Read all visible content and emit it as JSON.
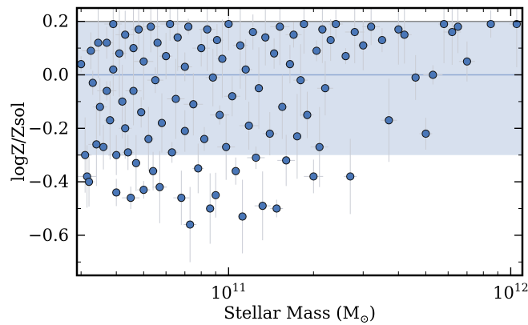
{
  "chart_data": {
    "type": "scatter",
    "xlabel": "Stellar Mass (M",
    "xlabel_symbol": "⊙",
    "xlabel_close": ")",
    "ylabel": "logZ/Zsol",
    "x_scale": "log",
    "xlim": [
      29000000000,
      1100000000000
    ],
    "ylim": [
      -0.75,
      0.25
    ],
    "x_ticks": [
      {
        "base": "10",
        "exp": "11",
        "value": 100000000000
      },
      {
        "base": "10",
        "exp": "12",
        "value": 1000000000000
      }
    ],
    "y_ticks": [
      {
        "label": "0.2",
        "value": 0.2
      },
      {
        "label": "0.0",
        "value": 0.0
      },
      {
        "label": "−0.2",
        "value": -0.2
      },
      {
        "label": "−0.4",
        "value": -0.4
      },
      {
        "label": "−0.6",
        "value": -0.6
      }
    ],
    "band": {
      "y_low": -0.3,
      "y_high": 0.2,
      "color": "#d7e0ee"
    },
    "reference_lines": [
      {
        "y": 0.2,
        "color": "#8a8a8a"
      },
      {
        "y": 0.0,
        "color": "#8fa8d2"
      }
    ],
    "grid": false,
    "legend": "none",
    "marker_color": "#4a77b8",
    "marker_edge": "#111111",
    "errorbar_color": "#c9ccd4",
    "points": [
      [
        30000000000.0,
        0.04
      ],
      [
        31000000000.0,
        -0.3
      ],
      [
        31500000000.0,
        -0.38
      ],
      [
        32000000000.0,
        -0.4
      ],
      [
        32500000000.0,
        0.09
      ],
      [
        33000000000.0,
        -0.03
      ],
      [
        34000000000.0,
        -0.26
      ],
      [
        34500000000.0,
        0.12
      ],
      [
        35000000000.0,
        -0.12
      ],
      [
        36000000000.0,
        -0.27
      ],
      [
        37000000000.0,
        0.12
      ],
      [
        37000000000.0,
        -0.06
      ],
      [
        38000000000.0,
        -0.17
      ],
      [
        39000000000.0,
        0.19
      ],
      [
        39000000000.0,
        0.02
      ],
      [
        40000000000.0,
        -0.3
      ],
      [
        40000000000.0,
        -0.44
      ],
      [
        41000000000.0,
        0.08
      ],
      [
        42000000000.0,
        -0.1
      ],
      [
        43000000000.0,
        -0.2
      ],
      [
        43000000000.0,
        0.15
      ],
      [
        44000000000.0,
        -0.29
      ],
      [
        45000000000.0,
        -0.46
      ],
      [
        46000000000.0,
        0.1
      ],
      [
        46000000000.0,
        -0.06
      ],
      [
        47000000000.0,
        -0.33
      ],
      [
        48000000000.0,
        0.17
      ],
      [
        49000000000.0,
        -0.14
      ],
      [
        50000000000.0,
        -0.43
      ],
      [
        50000000000.0,
        0.05
      ],
      [
        52000000000.0,
        -0.24
      ],
      [
        53000000000.0,
        0.18
      ],
      [
        54000000000.0,
        -0.36
      ],
      [
        55000000000.0,
        -0.02
      ],
      [
        56000000000.0,
        0.12
      ],
      [
        57000000000.0,
        -0.42
      ],
      [
        58000000000.0,
        -0.18
      ],
      [
        60000000000.0,
        0.07
      ],
      [
        62000000000.0,
        0.19
      ],
      [
        63000000000.0,
        -0.29
      ],
      [
        65000000000.0,
        -0.09
      ],
      [
        66000000000.0,
        0.14
      ],
      [
        68000000000.0,
        -0.46
      ],
      [
        70000000000.0,
        -0.21
      ],
      [
        70000000000.0,
        0.03
      ],
      [
        72000000000.0,
        0.18
      ],
      [
        73000000000.0,
        -0.56
      ],
      [
        75000000000.0,
        -0.11
      ],
      [
        78000000000.0,
        -0.35
      ],
      [
        80000000000.0,
        0.1
      ],
      [
        82000000000.0,
        -0.24
      ],
      [
        84000000000.0,
        0.17
      ],
      [
        86000000000.0,
        -0.5
      ],
      [
        88000000000.0,
        -0.01
      ],
      [
        90000000000.0,
        -0.45
      ],
      [
        91000000000.0,
        0.13
      ],
      [
        93000000000.0,
        -0.15
      ],
      [
        95000000000.0,
        0.06
      ],
      [
        98000000000.0,
        -0.27
      ],
      [
        100000000000.0,
        0.19
      ],
      [
        103000000000.0,
        -0.08
      ],
      [
        106000000000.0,
        -0.36
      ],
      [
        110000000000.0,
        0.11
      ],
      [
        112000000000.0,
        -0.53
      ],
      [
        115000000000.0,
        0.02
      ],
      [
        118000000000.0,
        -0.19
      ],
      [
        122000000000.0,
        0.16
      ],
      [
        125000000000.0,
        -0.31
      ],
      [
        128000000000.0,
        -0.05
      ],
      [
        132000000000.0,
        -0.49
      ],
      [
        135000000000.0,
        0.14
      ],
      [
        140000000000.0,
        -0.22
      ],
      [
        145000000000.0,
        0.08
      ],
      [
        148000000000.0,
        -0.5
      ],
      [
        152000000000.0,
        0.18
      ],
      [
        155000000000.0,
        -0.12
      ],
      [
        160000000000.0,
        -0.32
      ],
      [
        165000000000.0,
        0.04
      ],
      [
        170000000000.0,
        0.15
      ],
      [
        175000000000.0,
        -0.23
      ],
      [
        180000000000.0,
        -0.02
      ],
      [
        185000000000.0,
        0.19
      ],
      [
        190000000000.0,
        -0.15
      ],
      [
        200000000000.0,
        -0.38
      ],
      [
        205000000000.0,
        0.09
      ],
      [
        210000000000.0,
        -0.27
      ],
      [
        215000000000.0,
        0.17
      ],
      [
        220000000000.0,
        -0.05
      ],
      [
        230000000000.0,
        0.13
      ],
      [
        240000000000.0,
        0.19
      ],
      [
        260000000000.0,
        0.07
      ],
      [
        270000000000.0,
        -0.38
      ],
      [
        280000000000.0,
        0.16
      ],
      [
        300000000000.0,
        0.11
      ],
      [
        320000000000.0,
        0.18
      ],
      [
        350000000000.0,
        0.13
      ],
      [
        370000000000.0,
        -0.17
      ],
      [
        400000000000.0,
        0.17
      ],
      [
        420000000000.0,
        0.15
      ],
      [
        460000000000.0,
        -0.01
      ],
      [
        500000000000.0,
        -0.22
      ],
      [
        530000000000.0,
        -0.0
      ],
      [
        580000000000.0,
        0.19
      ],
      [
        620000000000.0,
        0.16
      ],
      [
        650000000000.0,
        0.18
      ],
      [
        700000000000.0,
        0.05
      ],
      [
        850000000000.0,
        0.19
      ],
      [
        1050000000000.0,
        0.19
      ]
    ]
  }
}
